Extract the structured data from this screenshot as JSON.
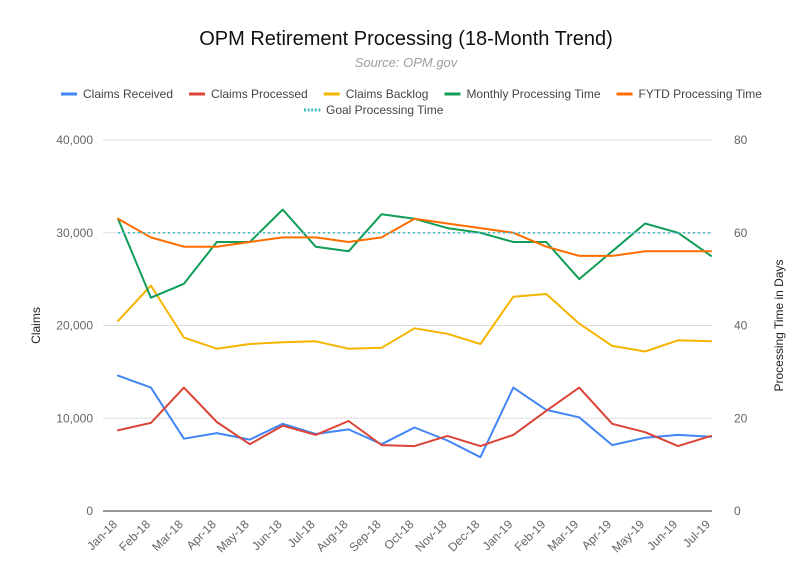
{
  "chart_data": {
    "type": "line",
    "title": "OPM Retirement Processing (18-Month Trend)",
    "subtitle": "Source: OPM.gov",
    "ylabel_left": "Claims",
    "ylabel_right": "Processing Time in Days",
    "ylim_left": [
      0,
      40000
    ],
    "ylim_right": [
      0,
      80
    ],
    "yticks_left": [
      "0",
      "10,000",
      "20,000",
      "30,000",
      "40,000"
    ],
    "yticks_right": [
      "0",
      "20",
      "40",
      "60",
      "80"
    ],
    "legend_position": "top",
    "grid": true,
    "categories": [
      "Jan-18",
      "Feb-18",
      "Mar-18",
      "Apr-18",
      "May-18",
      "Jun-18",
      "Jul-18",
      "Aug-18",
      "Sep-18",
      "Oct-18",
      "Nov-18",
      "Dec-18",
      "Jan-19",
      "Feb-19",
      "Mar-19",
      "Apr-19",
      "May-19",
      "Jun-19",
      "Jul-19"
    ],
    "series": [
      {
        "name": "Claims Received",
        "axis": "left",
        "color": "#4285f4",
        "style": "solid",
        "values": [
          14600,
          13300,
          7800,
          8400,
          7700,
          9400,
          8300,
          8800,
          7200,
          9000,
          7600,
          5800,
          13300,
          10900,
          10100,
          7100,
          7900,
          8200,
          8000
        ]
      },
      {
        "name": "Claims Processed",
        "axis": "left",
        "color": "#db4437",
        "style": "solid",
        "values": [
          8700,
          9500,
          13300,
          9600,
          7200,
          9200,
          8200,
          9700,
          7100,
          7000,
          8100,
          7000,
          8200,
          10800,
          13300,
          9400,
          8500,
          7000,
          8100
        ]
      },
      {
        "name": "Claims Backlog",
        "axis": "left",
        "color": "#f4b400",
        "style": "solid",
        "values": [
          20500,
          24300,
          18700,
          17500,
          18000,
          18200,
          18300,
          17500,
          17600,
          19700,
          19100,
          18000,
          23100,
          23400,
          20200,
          17800,
          17200,
          18400,
          18300
        ]
      },
      {
        "name": "Monthly Processing Time",
        "axis": "right",
        "color": "#0f9d58",
        "style": "solid",
        "values": [
          63,
          46,
          49,
          58,
          58,
          65,
          57,
          56,
          64,
          63,
          61,
          60,
          58,
          58,
          50,
          56,
          62,
          60,
          55
        ]
      },
      {
        "name": "FYTD Processing Time",
        "axis": "right",
        "color": "#ff6d00",
        "style": "solid",
        "values": [
          63,
          59,
          57,
          57,
          58,
          59,
          59,
          58,
          59,
          63,
          62,
          61,
          60,
          57,
          55,
          55,
          56,
          56,
          56
        ]
      },
      {
        "name": "Goal Processing Time",
        "axis": "right",
        "color": "#46bdc6",
        "style": "dotted",
        "values": [
          60,
          60,
          60,
          60,
          60,
          60,
          60,
          60,
          60,
          60,
          60,
          60,
          60,
          60,
          60,
          60,
          60,
          60,
          60
        ]
      }
    ]
  }
}
